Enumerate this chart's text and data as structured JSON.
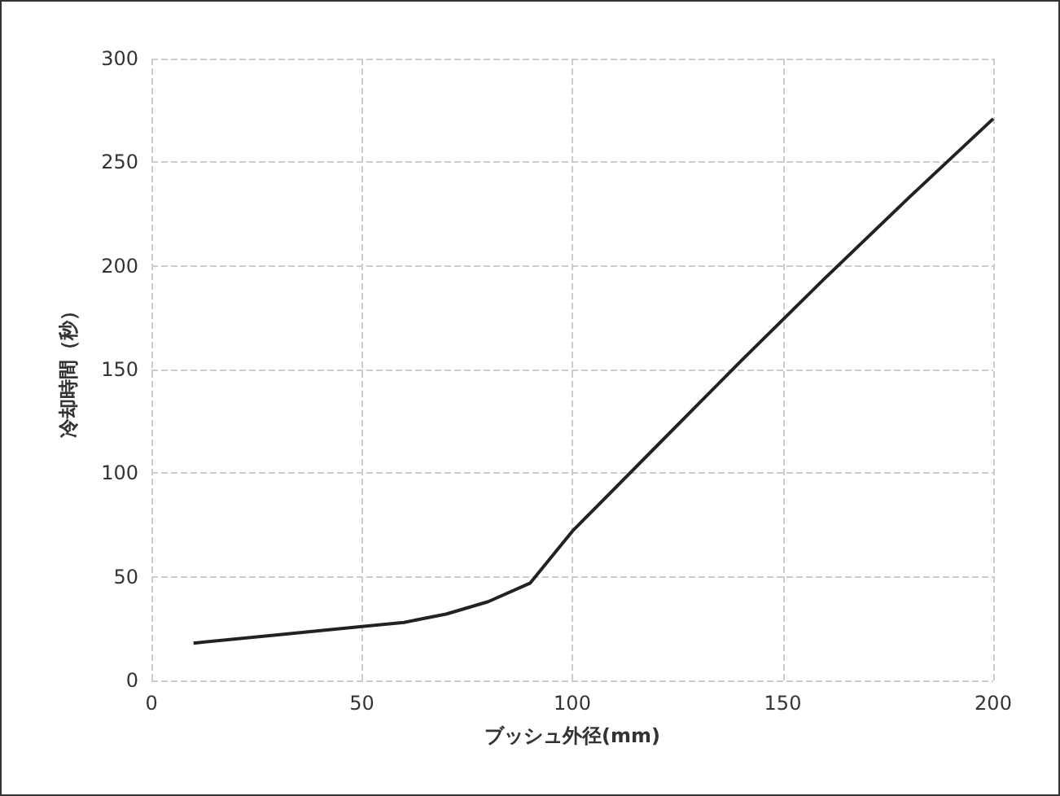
{
  "chart_data": {
    "type": "line",
    "xlabel": "ブッシュ外径(mm)",
    "ylabel": "冷却時間（秒）",
    "x": [
      10,
      30,
      50,
      60,
      70,
      80,
      90,
      100,
      120,
      140,
      160,
      180,
      200
    ],
    "series": [
      {
        "color": "#222222",
        "values": [
          18,
          22,
          26,
          28,
          32,
          38,
          47,
          72,
          113,
          154,
          194,
          233,
          271
        ]
      }
    ],
    "xlim": [
      0,
      200
    ],
    "xticks": [
      0,
      50,
      100,
      150,
      200
    ],
    "ylim": [
      0,
      300
    ],
    "yticks": [
      0,
      50,
      100,
      150,
      200,
      250,
      300
    ],
    "grid": true,
    "marker": "none",
    "line_style": "solid"
  }
}
